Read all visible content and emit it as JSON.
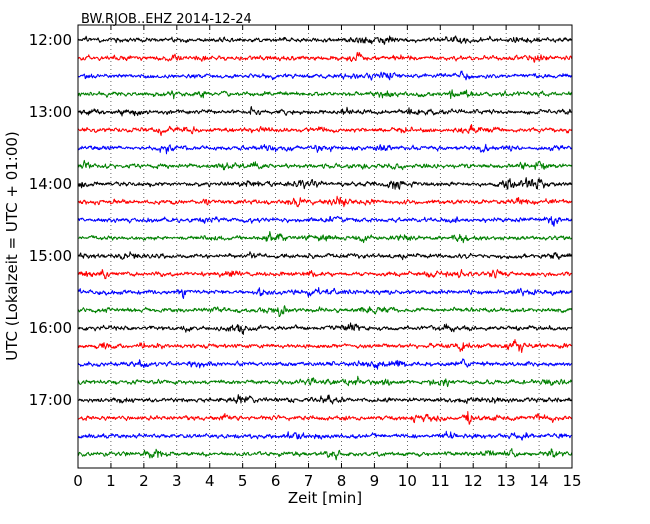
{
  "chart_data": {
    "type": "line",
    "title": "BW.RJOB..EHZ 2014-12-24",
    "xlabel": "Zeit  [min]",
    "ylabel": "UTC (Lokalzeit = UTC + 01:00)",
    "xlim": [
      0,
      15
    ],
    "x_ticks": [
      "0",
      "1",
      "2",
      "3",
      "4",
      "5",
      "6",
      "7",
      "8",
      "9",
      "10",
      "11",
      "12",
      "13",
      "14",
      "15"
    ],
    "y_tick_labels": [
      "12:00",
      "13:00",
      "14:00",
      "15:00",
      "16:00",
      "17:00"
    ],
    "rows_per_hour": 4,
    "row_start_minutes": [
      0,
      15,
      30,
      45,
      60,
      75,
      90,
      105,
      120,
      135,
      150,
      165,
      180,
      195,
      210,
      225,
      240,
      255,
      270,
      285,
      300,
      315,
      330,
      345
    ],
    "row_colors": [
      "#000000",
      "#ff0000",
      "#0000ff",
      "#008000"
    ],
    "vertical_grid": "dotted, every 1 min",
    "events": [
      {
        "row_start_minute": 120,
        "x": 9.65,
        "strength": 2.0
      },
      {
        "row_start_minute": 120,
        "x": 13.05,
        "strength": 1.6
      },
      {
        "row_start_minute": 315,
        "x": 11.85,
        "strength": 1.8
      },
      {
        "row_start_minute": 60,
        "x": 5.3,
        "strength": 1.2
      },
      {
        "row_start_minute": 90,
        "x": 12.3,
        "strength": 1.3
      }
    ]
  }
}
